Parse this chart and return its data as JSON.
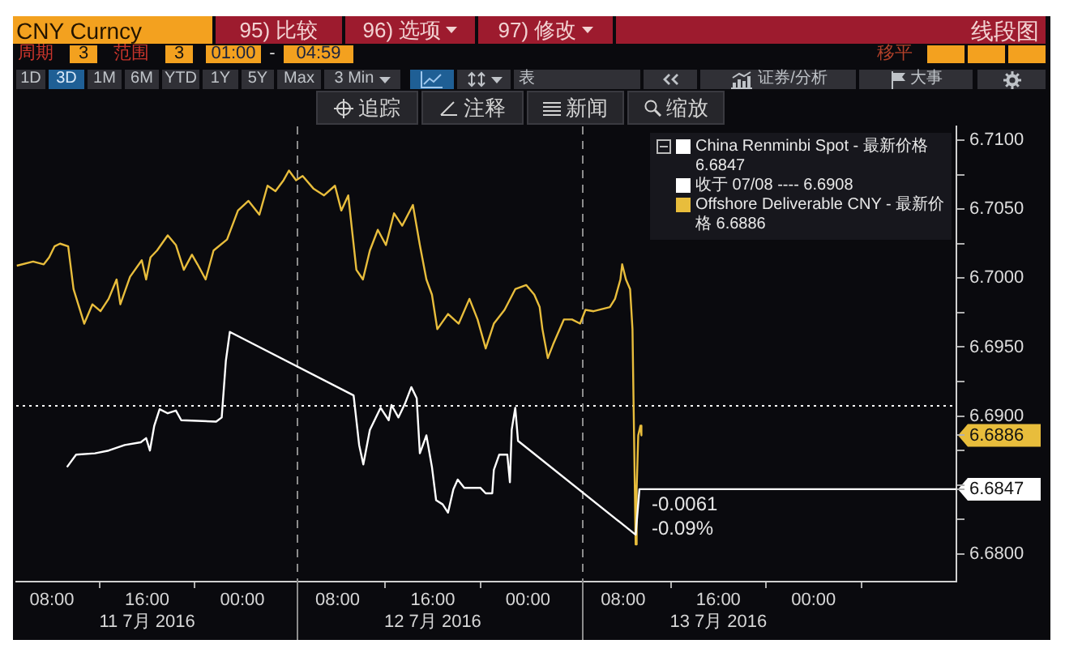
{
  "chart_data": {
    "type": "line",
    "marker": "none",
    "legend": "top right",
    "xlim": [
      "2016-07-11T05:00",
      "2016-07-14T12:00"
    ],
    "xticks": [
      {
        "value": "2016-07-11T08:00",
        "label": "08:00"
      },
      {
        "value": "2016-07-11T12:00",
        "label": null
      },
      {
        "value": "2016-07-11T16:00",
        "label": "16:00\n11 7月 2016"
      },
      {
        "value": "2016-07-11T20:00",
        "label": null
      },
      {
        "value": "2016-07-12T00:00",
        "label": "00:00"
      },
      {
        "value": "2016-07-12T08:00",
        "label": "08:00"
      },
      {
        "value": "2016-07-12T12:00",
        "label": null
      },
      {
        "value": "2016-07-12T16:00",
        "label": "16:00\n12 7月 2016"
      },
      {
        "value": "2016-07-12T20:00",
        "label": null
      },
      {
        "value": "2016-07-13T00:00",
        "label": "00:00"
      },
      {
        "value": "2016-07-13T08:00",
        "label": "08:00"
      },
      {
        "value": "2016-07-13T12:00",
        "label": null
      },
      {
        "value": "2016-07-13T16:00",
        "label": "16:00\n13 7月 2016"
      },
      {
        "value": "2016-07-13T20:00",
        "label": null
      },
      {
        "value": "2016-07-14T00:00",
        "label": "00:00"
      },
      {
        "value": "2016-07-14T04:00",
        "label": null
      }
    ],
    "ylim": [
      6.678,
      6.711
    ],
    "yticks": [
      {
        "value": 6.68,
        "label": "6.6800"
      },
      {
        "value": 6.6825,
        "label": null
      },
      {
        "value": 6.6847,
        "label": "6.6847"
      },
      {
        "value": 6.685,
        "label": null
      },
      {
        "value": 6.6875,
        "label": null
      },
      {
        "value": 6.6886,
        "label": "6.6886"
      },
      {
        "value": 6.69,
        "label": "6.6900"
      },
      {
        "value": 6.6925,
        "label": null
      },
      {
        "value": 6.695,
        "label": "6.6950"
      },
      {
        "value": 6.6975,
        "label": null
      },
      {
        "value": 6.7,
        "label": "6.7000"
      },
      {
        "value": 6.7025,
        "label": null
      },
      {
        "value": 6.705,
        "label": "6.7050"
      },
      {
        "value": 6.7075,
        "label": null
      },
      {
        "value": 6.71,
        "label": "6.7100"
      }
    ],
    "series": [
      {
        "name": "China Renminbi Spot - 最新价格 6.6847",
        "color": "#ffffff",
        "x": [
          "2016-07-11T09:16",
          "2016-07-11T10:02",
          "2016-07-11T11:37",
          "2016-07-11T12:46",
          "2016-07-11T14:07",
          "2016-07-11T15:28",
          "2016-07-11T15:55",
          "2016-07-11T16:14",
          "2016-07-11T16:36",
          "2016-07-11T17:03",
          "2016-07-11T17:44",
          "2016-07-11T18:25",
          "2016-07-11T18:52",
          "2016-07-11T21:48",
          "2016-07-11T22:16",
          "2016-07-11T22:37",
          "2016-07-11T22:57",
          "2016-07-12T09:21",
          "2016-07-12T09:49",
          "2016-07-12T10:10",
          "2016-07-12T10:43",
          "2016-07-12T11:37",
          "2016-07-12T12:18",
          "2016-07-12T12:32",
          "2016-07-12T13:07",
          "2016-07-12T13:40",
          "2016-07-12T14:12",
          "2016-07-12T14:39",
          "2016-07-12T14:55",
          "2016-07-12T15:28",
          "2016-07-12T15:56",
          "2016-07-12T16:17",
          "2016-07-12T16:50",
          "2016-07-12T17:17",
          "2016-07-12T17:44",
          "2016-07-12T18:06",
          "2016-07-12T18:39",
          "2016-07-12T20:00",
          "2016-07-12T20:27",
          "2016-07-12T21:00",
          "2016-07-12T21:08",
          "2016-07-12T21:35",
          "2016-07-12T22:16",
          "2016-07-12T22:29",
          "2016-07-12T22:38",
          "2016-07-12T22:56",
          "2016-07-12T23:10",
          "2016-07-13T09:03",
          "2016-07-13T09:22",
          "2016-07-14T12:00"
        ],
        "values": [
          6.6863,
          6.6872,
          6.6873,
          6.6875,
          6.6879,
          6.6881,
          6.6884,
          6.6875,
          6.6893,
          6.6905,
          6.6902,
          6.6904,
          6.6897,
          6.6896,
          6.6899,
          6.694,
          6.6961,
          6.6915,
          6.6879,
          6.6865,
          6.689,
          6.6906,
          6.6897,
          6.6908,
          6.6899,
          6.6909,
          6.6921,
          6.6913,
          6.6873,
          6.6886,
          6.6863,
          6.6839,
          6.6836,
          6.683,
          6.6847,
          6.6854,
          6.6848,
          6.6848,
          6.6844,
          6.6844,
          6.6861,
          6.6872,
          6.6872,
          6.6852,
          6.689,
          6.6906,
          6.6882,
          6.6814,
          6.6847,
          6.6847
        ]
      },
      {
        "name": "Offshore Deliverable CNY - 最新价格 6.6886",
        "color": "#e8bd3c",
        "x": [
          "2016-07-11T05:03",
          "2016-07-11T06:25",
          "2016-07-11T07:19",
          "2016-07-11T07:46",
          "2016-07-11T08:13",
          "2016-07-11T08:41",
          "2016-07-11T09:22",
          "2016-07-11T09:49",
          "2016-07-11T10:43",
          "2016-07-11T11:24",
          "2016-07-11T12:05",
          "2016-07-11T12:46",
          "2016-07-11T13:26",
          "2016-07-11T13:45",
          "2016-07-11T14:34",
          "2016-07-11T15:33",
          "2016-07-11T15:55",
          "2016-07-11T16:17",
          "2016-07-11T16:50",
          "2016-07-11T17:44",
          "2016-07-11T18:25",
          "2016-07-11T19:05",
          "2016-07-11T19:46",
          "2016-07-11T20:14",
          "2016-07-11T20:55",
          "2016-07-11T21:35",
          "2016-07-11T22:43",
          "2016-07-11T23:38",
          "2016-07-12T00:31",
          "2016-07-12T01:26",
          "2016-07-12T02:07",
          "2016-07-12T02:47",
          "2016-07-12T03:28",
          "2016-07-12T03:55",
          "2016-07-12T04:31",
          "2016-07-12T05:04",
          "2016-07-12T05:58",
          "2016-07-12T06:52",
          "2016-07-12T07:47",
          "2016-07-12T08:19",
          "2016-07-12T08:54",
          "2016-07-12T09:35",
          "2016-07-12T10:08",
          "2016-07-12T10:43",
          "2016-07-12T11:23",
          "2016-07-12T12:04",
          "2016-07-12T12:45",
          "2016-07-12T13:26",
          "2016-07-12T14:20",
          "2016-07-12T14:55",
          "2016-07-12T15:28",
          "2016-07-12T15:56",
          "2016-07-12T16:23",
          "2016-07-12T17:17",
          "2016-07-12T18:11",
          "2016-07-12T19:05",
          "2016-07-12T19:46",
          "2016-07-12T20:27",
          "2016-07-12T21:08",
          "2016-07-12T22:02",
          "2016-07-12T22:56",
          "2016-07-12T23:51",
          "2016-07-13T00:32",
          "2016-07-13T00:59",
          "2016-07-13T01:13",
          "2016-07-13T01:40",
          "2016-07-13T02:07",
          "2016-07-13T02:34",
          "2016-07-13T03:01",
          "2016-07-13T03:42",
          "2016-07-13T04:23",
          "2016-07-13T04:50",
          "2016-07-13T05:31",
          "2016-07-13T06:53",
          "2016-07-13T07:19",
          "2016-07-13T07:46",
          "2016-07-13T07:55",
          "2016-07-13T08:14",
          "2016-07-13T08:35",
          "2016-07-13T08:47",
          "2016-07-13T09:03",
          "2016-07-13T09:08",
          "2016-07-13T09:16",
          "2016-07-13T09:27",
          "2016-07-13T09:32"
        ],
        "values": [
          6.7009,
          6.7012,
          6.701,
          6.7015,
          6.7023,
          6.7025,
          6.7023,
          6.6992,
          6.6967,
          6.6981,
          6.6976,
          6.6985,
          6.6999,
          6.6981,
          6.7001,
          6.7013,
          6.6999,
          6.7015,
          6.702,
          6.7031,
          6.7024,
          6.7006,
          6.7017,
          6.701,
          6.6999,
          6.702,
          6.7028,
          6.7049,
          6.7056,
          6.7046,
          6.7067,
          6.7063,
          6.7071,
          6.7078,
          6.7071,
          6.7074,
          6.7065,
          6.706,
          6.7067,
          6.7049,
          6.706,
          6.7006,
          6.6999,
          6.702,
          6.7035,
          6.7024,
          6.7047,
          6.7038,
          6.7053,
          6.7024,
          6.6999,
          6.6988,
          6.6963,
          6.6974,
          6.6967,
          6.6985,
          6.697,
          6.6949,
          6.6967,
          6.6977,
          6.6992,
          6.6995,
          6.6988,
          6.6979,
          6.6963,
          6.6942,
          6.6952,
          6.6961,
          6.697,
          6.697,
          6.6967,
          6.6977,
          6.6976,
          6.6979,
          6.6985,
          6.6999,
          6.701,
          6.6999,
          6.6992,
          6.6963,
          6.6807,
          6.6847,
          6.6886,
          6.6893,
          6.6886
        ]
      }
    ],
    "ref_lines": [
      {
        "axis": "y",
        "value": 6.6908,
        "label": "收于 07/08 ---- 6.6908",
        "color": "#ffffff",
        "line_style": "dotted"
      },
      {
        "axis": "x",
        "value": "2016-07-12T04:30",
        "color": "#8c8c8c",
        "line_style": "dashed"
      },
      {
        "axis": "x",
        "value": "2016-07-13T04:30",
        "color": "#8c8c8c",
        "line_style": "dashed"
      }
    ],
    "annotations": [
      "CNY Curncy",
      "95) 比较",
      "96) 选项",
      "97) 修改",
      "线段图",
      "周期",
      "3",
      "范围",
      "3",
      "01:00",
      "-",
      "04:59",
      "移平",
      "1D",
      "3D",
      "1M",
      "6M",
      "YTD",
      "1Y",
      "5Y",
      "Max",
      "3 Min",
      "表",
      "证券/分析",
      "大事",
      "追踪",
      "注释",
      "新闻",
      "缩放",
      "-0.0061",
      "-0.09%"
    ]
  }
}
